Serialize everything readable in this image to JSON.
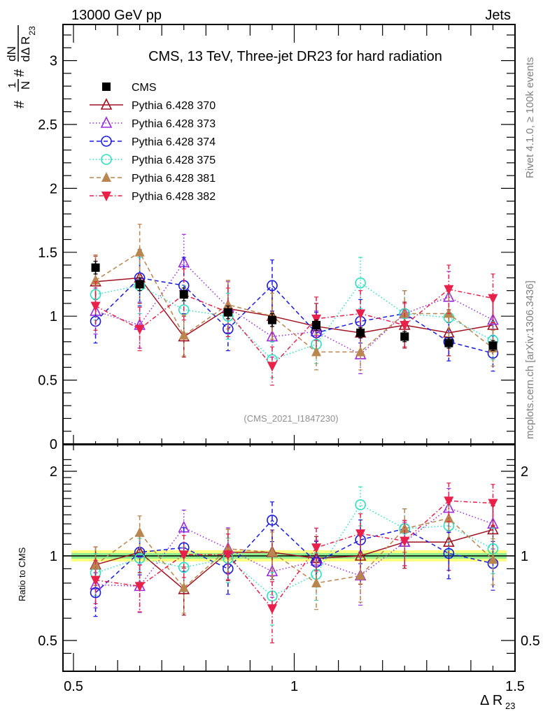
{
  "header": {
    "left_label": "13000 GeV pp",
    "right_label": "Jets",
    "right_side_note_top": "Rivet 4.1.0, ≥ 100k events",
    "right_side_note_bottom": "mcplots.cern.ch [arXiv:1306.3436]"
  },
  "chart_data": [
    {
      "type": "line",
      "panel": "main",
      "title": "CMS, 13 TeV, Three-jet DR23 for hard radiation",
      "analysis_label": "(CMS_2021_I1847230)",
      "ylabel": "#frac{1}{N} #frac{dN}{dΔ R_{23}}",
      "ylabel_parts": {
        "prefix": "#",
        "num1": "1",
        "den1": "N",
        "mid": "#",
        "num2": "dN",
        "den2": "dΔ R",
        "sub": "23"
      },
      "xlabel": "",
      "xlim": [
        0.5,
        1.5
      ],
      "ylim": [
        0,
        3.28
      ],
      "yticks": [
        0,
        0.5,
        1,
        1.5,
        2,
        2.5,
        3
      ],
      "ytick_labels": [
        "0",
        "0.5",
        "1",
        "1.5",
        "2",
        "2.5",
        "3"
      ],
      "legend_position": "top-left",
      "x": [
        0.55,
        0.65,
        0.75,
        0.85,
        0.95,
        1.05,
        1.15,
        1.25,
        1.35,
        1.45
      ],
      "series": [
        {
          "name": "CMS",
          "color": "#000000",
          "marker": "square-filled",
          "line": "none",
          "values": [
            1.38,
            1.25,
            1.17,
            1.03,
            0.97,
            0.93,
            0.87,
            0.84,
            0.79,
            0.77
          ],
          "errors": [
            0.05,
            0.05,
            0.05,
            0.05,
            0.05,
            0.04,
            0.04,
            0.04,
            0.04,
            0.04
          ]
        },
        {
          "name": "Pythia 6.428 370",
          "color": "#a01020",
          "marker": "triangle-up-open",
          "line": "solid",
          "values": [
            1.27,
            1.3,
            0.84,
            1.06,
            1.0,
            0.92,
            0.87,
            0.93,
            0.87,
            0.93
          ],
          "errors": [
            0.2,
            0.2,
            0.16,
            0.22,
            0.2,
            0.18,
            0.18,
            0.18,
            0.18,
            0.2
          ]
        },
        {
          "name": "Pythia 6.428 373",
          "color": "#9a2be0",
          "marker": "triangle-up-open",
          "line": "dotted",
          "values": [
            1.04,
            0.93,
            1.42,
            1.07,
            0.84,
            0.88,
            0.7,
            1.02,
            1.15,
            0.97
          ],
          "errors": [
            0.18,
            0.18,
            0.22,
            0.2,
            0.16,
            0.16,
            0.15,
            0.18,
            0.2,
            0.18
          ]
        },
        {
          "name": "Pythia 6.428 374",
          "color": "#1a1ae0",
          "marker": "circle-open",
          "line": "dashed",
          "values": [
            0.96,
            1.3,
            1.24,
            0.9,
            1.24,
            0.87,
            0.96,
            1.02,
            0.8,
            0.71
          ],
          "errors": [
            0.17,
            0.22,
            0.22,
            0.17,
            0.2,
            0.16,
            0.17,
            0.18,
            0.15,
            0.14
          ]
        },
        {
          "name": "Pythia 6.428 375",
          "color": "#2ee0c0",
          "marker": "circle-open",
          "line": "dotted",
          "values": [
            1.17,
            1.24,
            1.05,
            1.0,
            0.66,
            0.78,
            1.26,
            1.02,
            0.99,
            0.81
          ],
          "errors": [
            0.2,
            0.22,
            0.19,
            0.18,
            0.14,
            0.15,
            0.2,
            0.18,
            0.18,
            0.15
          ]
        },
        {
          "name": "Pythia 6.428 381",
          "color": "#b8864e",
          "marker": "triangle-up-filled",
          "line": "dashed",
          "values": [
            1.28,
            1.5,
            0.85,
            1.09,
            1.0,
            0.72,
            0.72,
            1.02,
            1.02,
            0.75
          ],
          "errors": [
            0.2,
            0.22,
            0.16,
            0.19,
            0.18,
            0.14,
            0.14,
            0.18,
            0.18,
            0.14
          ]
        },
        {
          "name": "Pythia 6.428 382",
          "color": "#e8204a",
          "marker": "triangle-down-filled",
          "line": "dashdot",
          "values": [
            1.08,
            0.9,
            1.17,
            1.03,
            0.61,
            0.98,
            1.02,
            0.93,
            1.21,
            1.14
          ],
          "errors": [
            0.19,
            0.17,
            0.2,
            0.19,
            0.15,
            0.17,
            0.18,
            0.17,
            0.19,
            0.19
          ]
        }
      ]
    },
    {
      "type": "line",
      "panel": "ratio",
      "title": "",
      "ylabel": "Ratio to CMS",
      "xlabel": "Δ R",
      "xlabel_sub": "23",
      "xlim": [
        0.5,
        1.5
      ],
      "xticks": [
        0.5,
        1,
        1.5
      ],
      "xtick_labels": [
        "0.5",
        "1",
        "1.5"
      ],
      "yscale": "log",
      "ylim": [
        0.43,
        2.3
      ],
      "yticks": [
        0.5,
        1,
        2
      ],
      "ytick_labels": [
        "0.5",
        "1",
        "2"
      ],
      "reference_line": 1,
      "band": {
        "inner_color": "#90ee90",
        "outer_color": "#ffff80"
      },
      "x": [
        0.55,
        0.65,
        0.75,
        0.85,
        0.95,
        1.05,
        1.15,
        1.25,
        1.35,
        1.45
      ],
      "series": [
        {
          "name": "Pythia 6.428 370",
          "values": [
            0.93,
            1.03,
            0.76,
            1.03,
            1.03,
            0.98,
            1.0,
            1.12,
            1.12,
            1.24
          ]
        },
        {
          "name": "Pythia 6.428 373",
          "values": [
            0.79,
            0.78,
            1.26,
            1.06,
            0.88,
            0.96,
            0.85,
            1.12,
            1.48,
            1.3
          ]
        },
        {
          "name": "Pythia 6.428 374",
          "values": [
            0.74,
            1.03,
            1.07,
            0.9,
            1.34,
            0.95,
            1.14,
            1.25,
            1.02,
            0.94
          ]
        },
        {
          "name": "Pythia 6.428 375",
          "values": [
            0.87,
            0.98,
            0.91,
            0.98,
            0.72,
            0.86,
            1.52,
            1.25,
            1.28,
            1.06
          ]
        },
        {
          "name": "Pythia 6.428 381",
          "values": [
            0.93,
            1.21,
            0.77,
            1.06,
            1.03,
            0.8,
            0.85,
            1.25,
            1.36,
            0.97
          ]
        },
        {
          "name": "Pythia 6.428 382",
          "values": [
            0.82,
            0.78,
            1.01,
            1.01,
            0.65,
            1.07,
            1.2,
            1.13,
            1.57,
            1.54
          ]
        }
      ]
    }
  ]
}
